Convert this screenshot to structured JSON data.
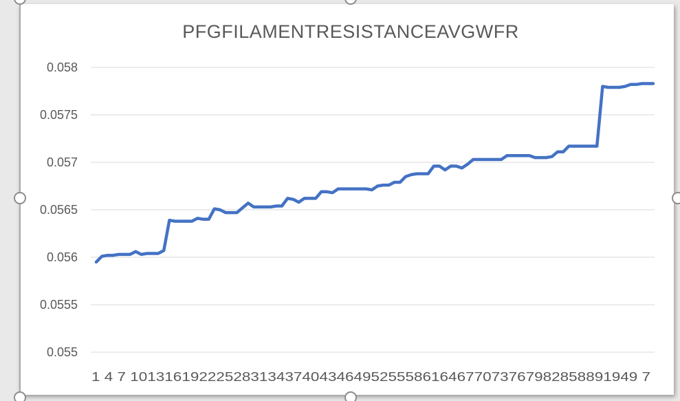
{
  "chart_data": {
    "type": "line",
    "title": "PFGFILAMENTRESISTANCEAVGWFR",
    "xlabel": "",
    "ylabel": "",
    "ylim": [
      0.055,
      0.058
    ],
    "y_ticks": [
      "0.055",
      "0.0555",
      "0.056",
      "0.0565",
      "0.057",
      "0.0575",
      "0.058"
    ],
    "x_tick_labels_text": "1 4 7 10131619222528313437404346495255586164677073767982858891949 7",
    "x_tick_labels": [
      "1",
      "4",
      "7",
      "10",
      "13",
      "16",
      "19",
      "22",
      "25",
      "28",
      "31",
      "34",
      "37",
      "40",
      "43",
      "46",
      "49",
      "52",
      "55",
      "58",
      "61",
      "64",
      "67",
      "70",
      "73",
      "76",
      "79",
      "82",
      "85",
      "88",
      "91",
      "94",
      "97"
    ],
    "x_range": [
      1,
      100
    ],
    "grid": true,
    "legend": "none",
    "series": [
      {
        "color": "#4472c4",
        "x": [
          1,
          2,
          3,
          4,
          5,
          6,
          7,
          8,
          9,
          10,
          11,
          12,
          13,
          14,
          15,
          16,
          17,
          18,
          19,
          20,
          21,
          22,
          23,
          24,
          25,
          26,
          27,
          28,
          29,
          30,
          31,
          32,
          33,
          34,
          35,
          36,
          37,
          38,
          39,
          40,
          41,
          42,
          43,
          44,
          45,
          46,
          47,
          48,
          49,
          50,
          51,
          52,
          53,
          54,
          55,
          56,
          57,
          58,
          59,
          60,
          61,
          62,
          63,
          64,
          65,
          66,
          67,
          68,
          69,
          70,
          71,
          72,
          73,
          74,
          75,
          76,
          77,
          78,
          79,
          80,
          81,
          82,
          83,
          84,
          85,
          86,
          87,
          88,
          89,
          90,
          91,
          92,
          93,
          94,
          95,
          96,
          97,
          98,
          99,
          100
        ],
        "values": [
          0.05595,
          0.05601,
          0.05602,
          0.05602,
          0.05603,
          0.05603,
          0.05603,
          0.05606,
          0.05603,
          0.05604,
          0.05604,
          0.05604,
          0.05607,
          0.05639,
          0.05638,
          0.05638,
          0.05638,
          0.05638,
          0.05641,
          0.0564,
          0.0564,
          0.05651,
          0.0565,
          0.05647,
          0.05647,
          0.05647,
          0.05652,
          0.05657,
          0.05653,
          0.05653,
          0.05653,
          0.05653,
          0.05654,
          0.05654,
          0.05662,
          0.05661,
          0.05658,
          0.05662,
          0.05662,
          0.05662,
          0.05669,
          0.05669,
          0.05668,
          0.05672,
          0.05672,
          0.05672,
          0.05672,
          0.05672,
          0.05672,
          0.05671,
          0.05675,
          0.05676,
          0.05676,
          0.05679,
          0.05679,
          0.05685,
          0.05687,
          0.05688,
          0.05688,
          0.05688,
          0.05696,
          0.05696,
          0.05692,
          0.05696,
          0.05696,
          0.05694,
          0.05698,
          0.05703,
          0.05703,
          0.05703,
          0.05703,
          0.05703,
          0.05703,
          0.05707,
          0.05707,
          0.05707,
          0.05707,
          0.05707,
          0.05705,
          0.05705,
          0.05705,
          0.05706,
          0.05711,
          0.05711,
          0.05717,
          0.05717,
          0.05717,
          0.05717,
          0.05717,
          0.05717,
          0.0578,
          0.05779,
          0.05779,
          0.05779,
          0.0578,
          0.05782,
          0.05782,
          0.05783,
          0.05783,
          0.05783
        ]
      }
    ]
  }
}
